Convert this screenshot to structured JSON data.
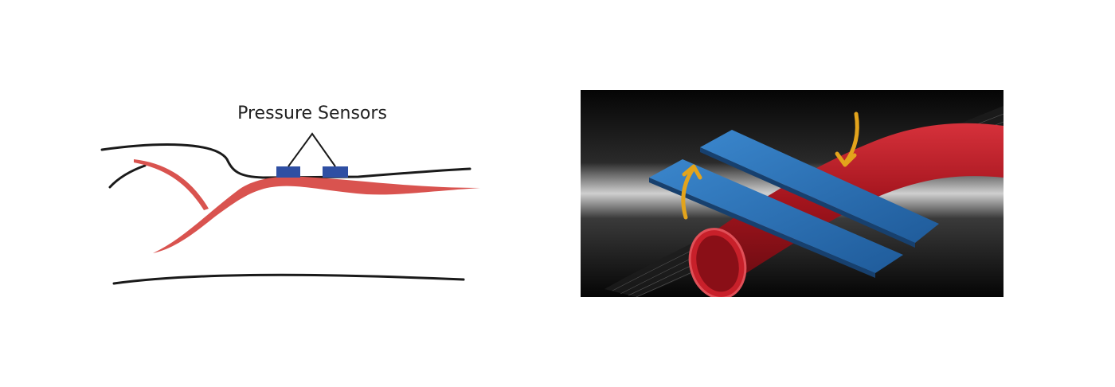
{
  "sensor_label": "Pressure Sensors",
  "colors": {
    "artery": "#d9534f",
    "sensor": "#2f4fa3",
    "outline": "#1a1a1a",
    "arrow": "#e3a41c",
    "render_strip": "#2f6fb3",
    "render_vessel": "#b01a24"
  },
  "icons": [
    "pressure-sensor-icon",
    "compression-arrow-icon"
  ]
}
